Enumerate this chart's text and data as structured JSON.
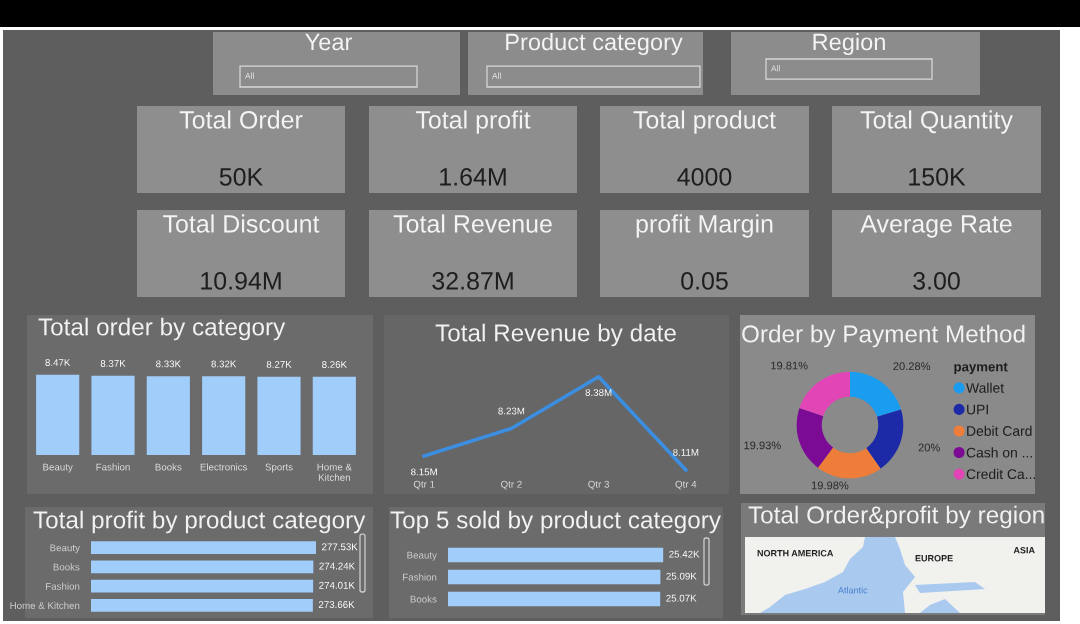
{
  "chart_data": [
    {
      "type": "other",
      "title": "Year",
      "annotations": [
        "All"
      ]
    },
    {
      "type": "other",
      "title": "Product category",
      "annotations": [
        "All"
      ]
    },
    {
      "type": "other",
      "title": "Region",
      "annotations": [
        "All"
      ]
    },
    {
      "type": "other",
      "title": "Total Order",
      "annotations": [
        "50K"
      ]
    },
    {
      "type": "other",
      "title": "Total profit",
      "annotations": [
        "1.64M"
      ]
    },
    {
      "type": "other",
      "title": "Total product",
      "annotations": [
        "4000"
      ]
    },
    {
      "type": "other",
      "title": "Total Quantity",
      "annotations": [
        "150K"
      ]
    },
    {
      "type": "other",
      "title": "Total Discount",
      "annotations": [
        "10.94M"
      ]
    },
    {
      "type": "other",
      "title": "Total Revenue",
      "annotations": [
        "32.87M"
      ]
    },
    {
      "type": "other",
      "title": "profit Margin",
      "annotations": [
        "0.05"
      ]
    },
    {
      "type": "other",
      "title": "Average Rate",
      "annotations": [
        "3.00"
      ]
    },
    {
      "type": "bar",
      "title": "Total order by category",
      "categories": [
        "Beauty",
        "Fashion",
        "Books",
        "Electronics",
        "Sports",
        "Home & Kitchen"
      ],
      "values": [
        8470,
        8370,
        8330,
        8320,
        8270,
        8260
      ],
      "value_labels": [
        "8.47K",
        "8.37K",
        "8.33K",
        "8.32K",
        "8.27K",
        "8.26K"
      ],
      "color": "#a0cdfa",
      "tick_labels": "x"
    },
    {
      "type": "line",
      "title": "Total Revenue by date",
      "categories": [
        "Qtr 1",
        "Qtr 2",
        "Qtr 3",
        "Qtr 4"
      ],
      "values": [
        8150000,
        8230000,
        8380000,
        8110000
      ],
      "value_labels": [
        "8.15M",
        "8.23M",
        "8.38M",
        "8.11M"
      ],
      "color": "#3b8ee0",
      "tick_labels": "x"
    },
    {
      "type": "donut",
      "title": "Order by Payment Method",
      "categories": [
        "Wallet",
        "UPI",
        "Debit Card",
        "Cash on ...",
        "Credit Ca..."
      ],
      "values": [
        20.28,
        20,
        19.98,
        19.93,
        19.81
      ],
      "value_labels": [
        "20.28%",
        "20%",
        "19.98%",
        "19.93%",
        "19.81%"
      ],
      "colors": [
        "#1a9cf0",
        "#1c2aa8",
        "#ef7d3a",
        "#7b0b95",
        "#e245b5"
      ],
      "legend": "right",
      "legend_title": "payment"
    },
    {
      "type": "bar",
      "orientation": "horizontal",
      "title": "Total profit by product category",
      "categories": [
        "Beauty",
        "Books",
        "Fashion",
        "Home & Kitchen"
      ],
      "values": [
        277530,
        274240,
        274010,
        273660
      ],
      "value_labels": [
        "277.53K",
        "274.24K",
        "274.01K",
        "273.66K"
      ],
      "color": "#a0cdfa",
      "tick_labels": "y"
    },
    {
      "type": "bar",
      "orientation": "horizontal",
      "title": "Top 5 sold by product category",
      "categories": [
        "Beauty",
        "Fashion",
        "Books"
      ],
      "values": [
        25420,
        25090,
        25070
      ],
      "value_labels": [
        "25.42K",
        "25.09K",
        "25.07K"
      ],
      "color": "#a0cdfa",
      "tick_labels": "y"
    },
    {
      "type": "other",
      "title": "Total Order&profit by region",
      "annotations": [
        "NORTH AMERICA",
        "EUROPE",
        "ASIA",
        "Atlantic"
      ]
    }
  ]
}
